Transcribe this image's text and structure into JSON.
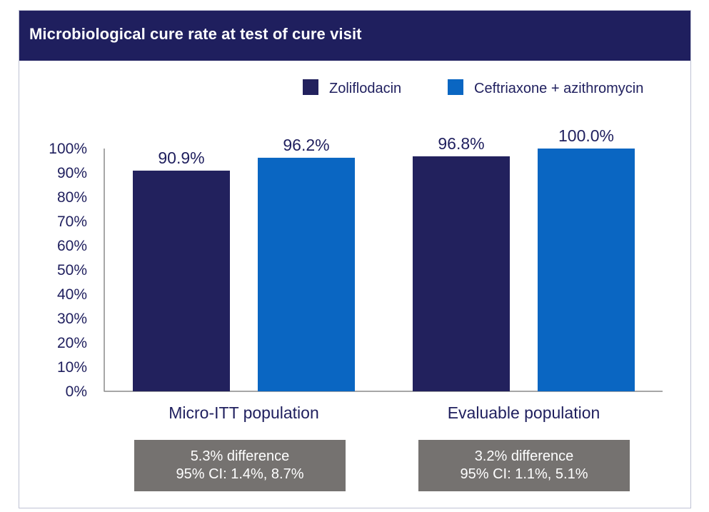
{
  "title": "Microbiological cure rate at test of cure visit",
  "chart_data": {
    "type": "bar",
    "title": "Microbiological cure rate at test of cure visit",
    "categories": [
      "Micro-ITT population",
      "Evaluable population"
    ],
    "series": [
      {
        "name": "Zoliflodacin",
        "values": [
          90.9,
          96.8
        ],
        "labels": [
          "90.9%",
          "96.8%"
        ],
        "color": "#22215d"
      },
      {
        "name": "Ceftriaxone + azithromycin",
        "values": [
          96.2,
          100.0
        ],
        "labels": [
          "96.2%",
          "100.0%"
        ],
        "color": "#0a66c2"
      }
    ],
    "ylim": [
      0,
      100
    ],
    "yticks": [
      "0%",
      "10%",
      "20%",
      "30%",
      "40%",
      "50%",
      "60%",
      "70%",
      "80%",
      "90%",
      "100%"
    ],
    "xlabel": "",
    "ylabel": "",
    "legend_position": "top-right",
    "grid": false
  },
  "notes": [
    {
      "line1": "5.3% difference",
      "line2": "95% CI: 1.4%, 8.7%"
    },
    {
      "line1": "3.2% difference",
      "line2": "95% CI: 1.1%, 5.1%"
    }
  ]
}
